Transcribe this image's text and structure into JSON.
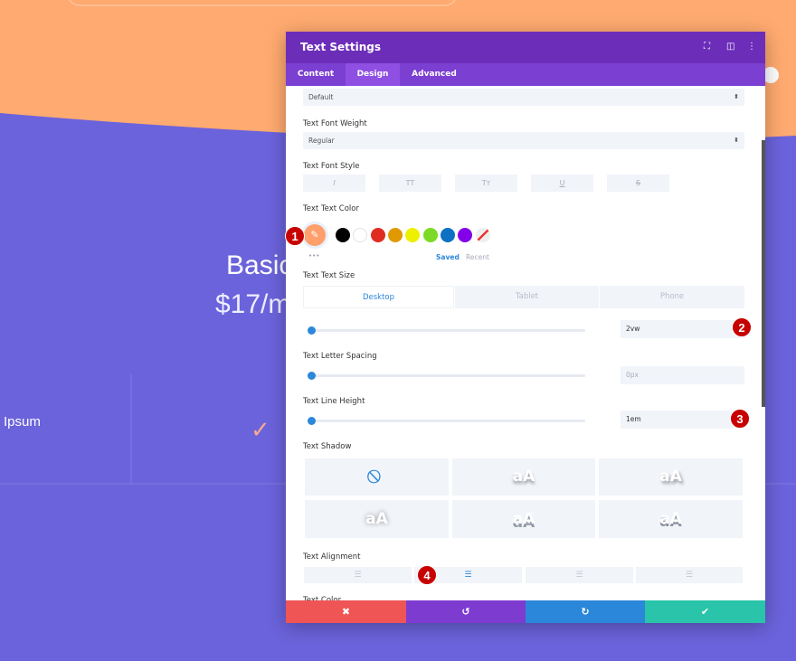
{
  "colors": {
    "orange": "#ffaa70",
    "page_purple": "#6b63db",
    "header": "#6c2eb9",
    "tabs_bg": "#7b3fd1",
    "accent_blue": "#2b87da",
    "cancel": "#ef5555",
    "undo": "#7e3bd0",
    "redo": "#2b87da",
    "save": "#29c4a9",
    "badge": "#c70000"
  },
  "page": {
    "plan_title": "Basic",
    "plan_price": "$17/m",
    "feature": "Ipsum",
    "check": "✓"
  },
  "modal": {
    "title": "Text Settings",
    "tabs": [
      {
        "label": "Content"
      },
      {
        "label": "Design",
        "active": true
      },
      {
        "label": "Advanced"
      }
    ],
    "font_select": "Default",
    "font_weight": {
      "label": "Text Font Weight",
      "value": "Regular"
    },
    "font_style": {
      "label": "Text Font Style",
      "buttons": [
        "I",
        "TT",
        "Tт",
        "U",
        "S"
      ]
    },
    "text_color": {
      "label": "Text Text Color",
      "current": "#ff9f6b",
      "swatches": [
        "#000000",
        "#ffffff",
        "#e02b20",
        "#e09900",
        "#edf000",
        "#7cda24",
        "#0c71c3",
        "#8300e9"
      ],
      "more": "•••",
      "saved": "Saved",
      "recent": "Recent"
    },
    "text_size": {
      "label": "Text Text Size",
      "devices": [
        "Desktop",
        "Tablet",
        "Phone"
      ],
      "value": "2vw"
    },
    "letter_spacing": {
      "label": "Text Letter Spacing",
      "value": "0px"
    },
    "line_height": {
      "label": "Text Line Height",
      "value": "1em"
    },
    "text_shadow": {
      "label": "Text Shadow",
      "preview": "aA"
    },
    "text_alignment": {
      "label": "Text Alignment",
      "options": [
        "left",
        "center",
        "right",
        "justify"
      ],
      "selected": "center"
    },
    "next_label": "Text Color",
    "footer": {
      "cancel": "✖",
      "undo": "↺",
      "redo": "↻",
      "save": "✔"
    }
  },
  "badges": [
    "1",
    "2",
    "3",
    "4"
  ]
}
